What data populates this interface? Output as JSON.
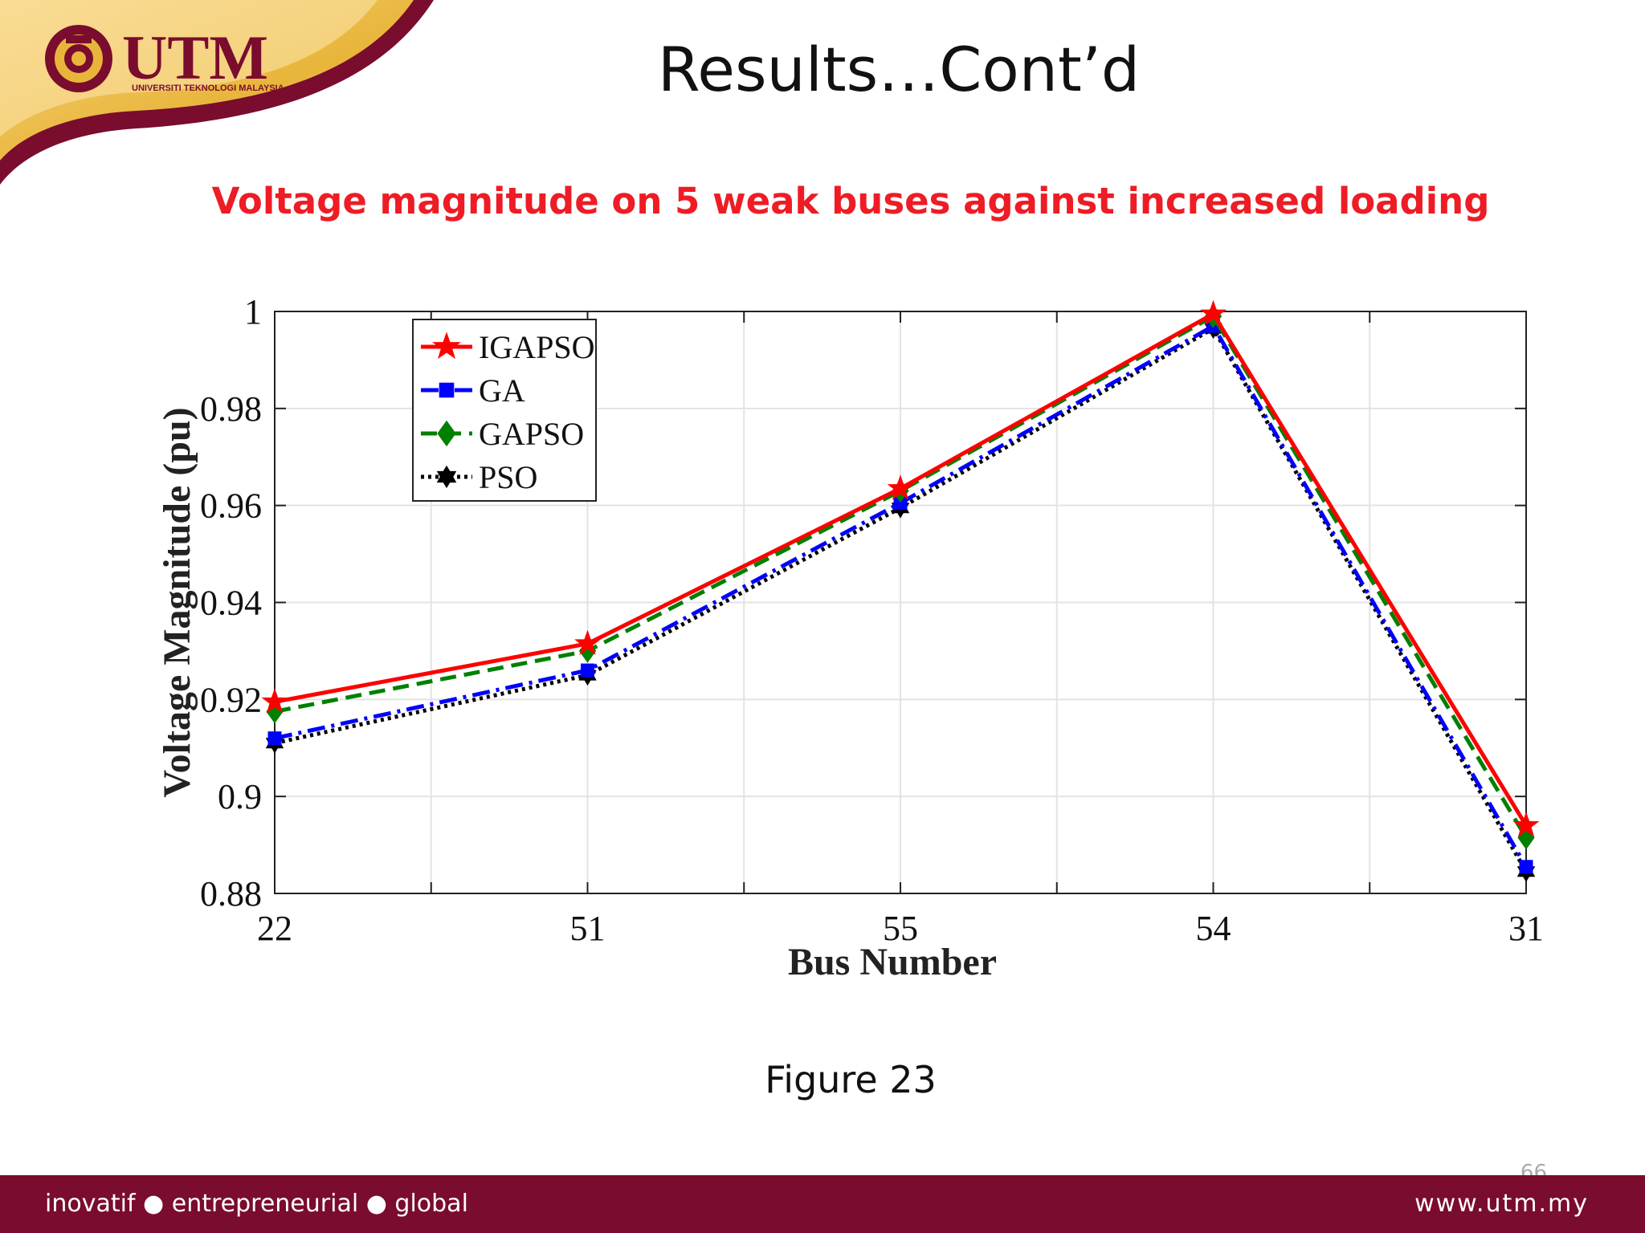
{
  "slide": {
    "title": "Results…Cont’d",
    "subtitle": "Voltage magnitude on 5 weak buses against increased loading",
    "caption": "Figure 23",
    "page_number": "66"
  },
  "branding": {
    "logo_text": "UTM",
    "logo_subtext": "UNIVERSITI TEKNOLOGI MALAYSIA",
    "footer_tagline": "inovatif ● entrepreneurial ● global",
    "footer_url": "www.utm.my",
    "colors": {
      "maroon": "#7a0c2e",
      "gold": "#e8b53a",
      "subtitle_red": "#ee1c25"
    }
  },
  "chart_data": {
    "type": "line",
    "categories": [
      "22",
      "51",
      "55",
      "54",
      "31"
    ],
    "xlabel": "Bus Number",
    "ylabel": "Voltage Magnitude (pu)",
    "ylim": [
      0.88,
      1.0
    ],
    "yticks": [
      "0.88",
      "0.9",
      "0.92",
      "0.94",
      "0.96",
      "0.98",
      "1"
    ],
    "grid": true,
    "legend_position": "top-left",
    "series": [
      {
        "name": "IGAPSO",
        "values": [
          0.9195,
          0.9315,
          0.9635,
          0.9995,
          0.894
        ],
        "color": "#ff0000",
        "dash": "solid",
        "marker": "star"
      },
      {
        "name": "GA",
        "values": [
          0.912,
          0.926,
          0.9605,
          0.997,
          0.8855
        ],
        "color": "#0000ff",
        "dash": "dashdot",
        "marker": "square"
      },
      {
        "name": "GAPSO",
        "values": [
          0.9175,
          0.93,
          0.963,
          0.999,
          0.8915
        ],
        "color": "#008000",
        "dash": "dashed",
        "marker": "diamond"
      },
      {
        "name": "PSO",
        "values": [
          0.911,
          0.925,
          0.9595,
          0.9965,
          0.8845
        ],
        "color": "#000000",
        "dash": "dotted",
        "marker": "hexagram"
      }
    ]
  }
}
